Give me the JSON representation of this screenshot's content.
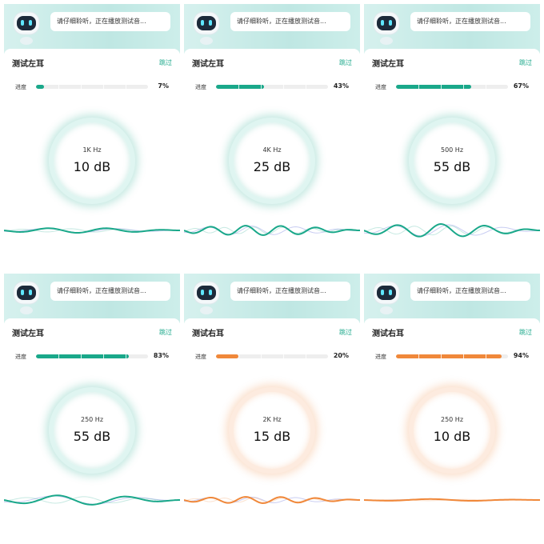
{
  "panels": [
    {
      "bubble": "请仔细聆听，正在播放测试音...",
      "title": "测试左耳",
      "skip": "跳过",
      "progress_text": "进度",
      "progress": {
        "value": 7,
        "label": "7%"
      },
      "frequency": "1K Hz",
      "level": "10 dB",
      "color": "#1aa88a"
    },
    {
      "bubble": "请仔细聆听，正在播放测试音...",
      "title": "测试左耳",
      "skip": "跳过",
      "progress_text": "进度",
      "progress": {
        "value": 43,
        "label": "43%"
      },
      "frequency": "4K Hz",
      "level": "25 dB",
      "color": "#1aa88a"
    },
    {
      "bubble": "请仔细聆听，正在播放测试音...",
      "title": "测试左耳",
      "skip": "跳过",
      "progress_text": "进度",
      "progress": {
        "value": 67,
        "label": "67%"
      },
      "frequency": "500 Hz",
      "level": "55 dB",
      "color": "#1aa88a"
    },
    {
      "bubble": "请仔细聆听，正在播放测试音...",
      "title": "测试左耳",
      "skip": "跳过",
      "progress_text": "进度",
      "progress": {
        "value": 83,
        "label": "83%"
      },
      "frequency": "250 Hz",
      "level": "55 dB",
      "color": "#1aa88a"
    },
    {
      "bubble": "请仔细聆听，正在播放测试音...",
      "title": "测试右耳",
      "skip": "跳过",
      "progress_text": "进度",
      "progress": {
        "value": 20,
        "label": "20%"
      },
      "frequency": "2K Hz",
      "level": "15 dB",
      "color": "#f0883a"
    },
    {
      "bubble": "请仔细聆听，正在播放测试音...",
      "title": "测试右耳",
      "skip": "跳过",
      "progress_text": "进度",
      "progress": {
        "value": 94,
        "label": "94%"
      },
      "frequency": "250 Hz",
      "level": "10 dB",
      "color": "#f0883a"
    }
  ]
}
